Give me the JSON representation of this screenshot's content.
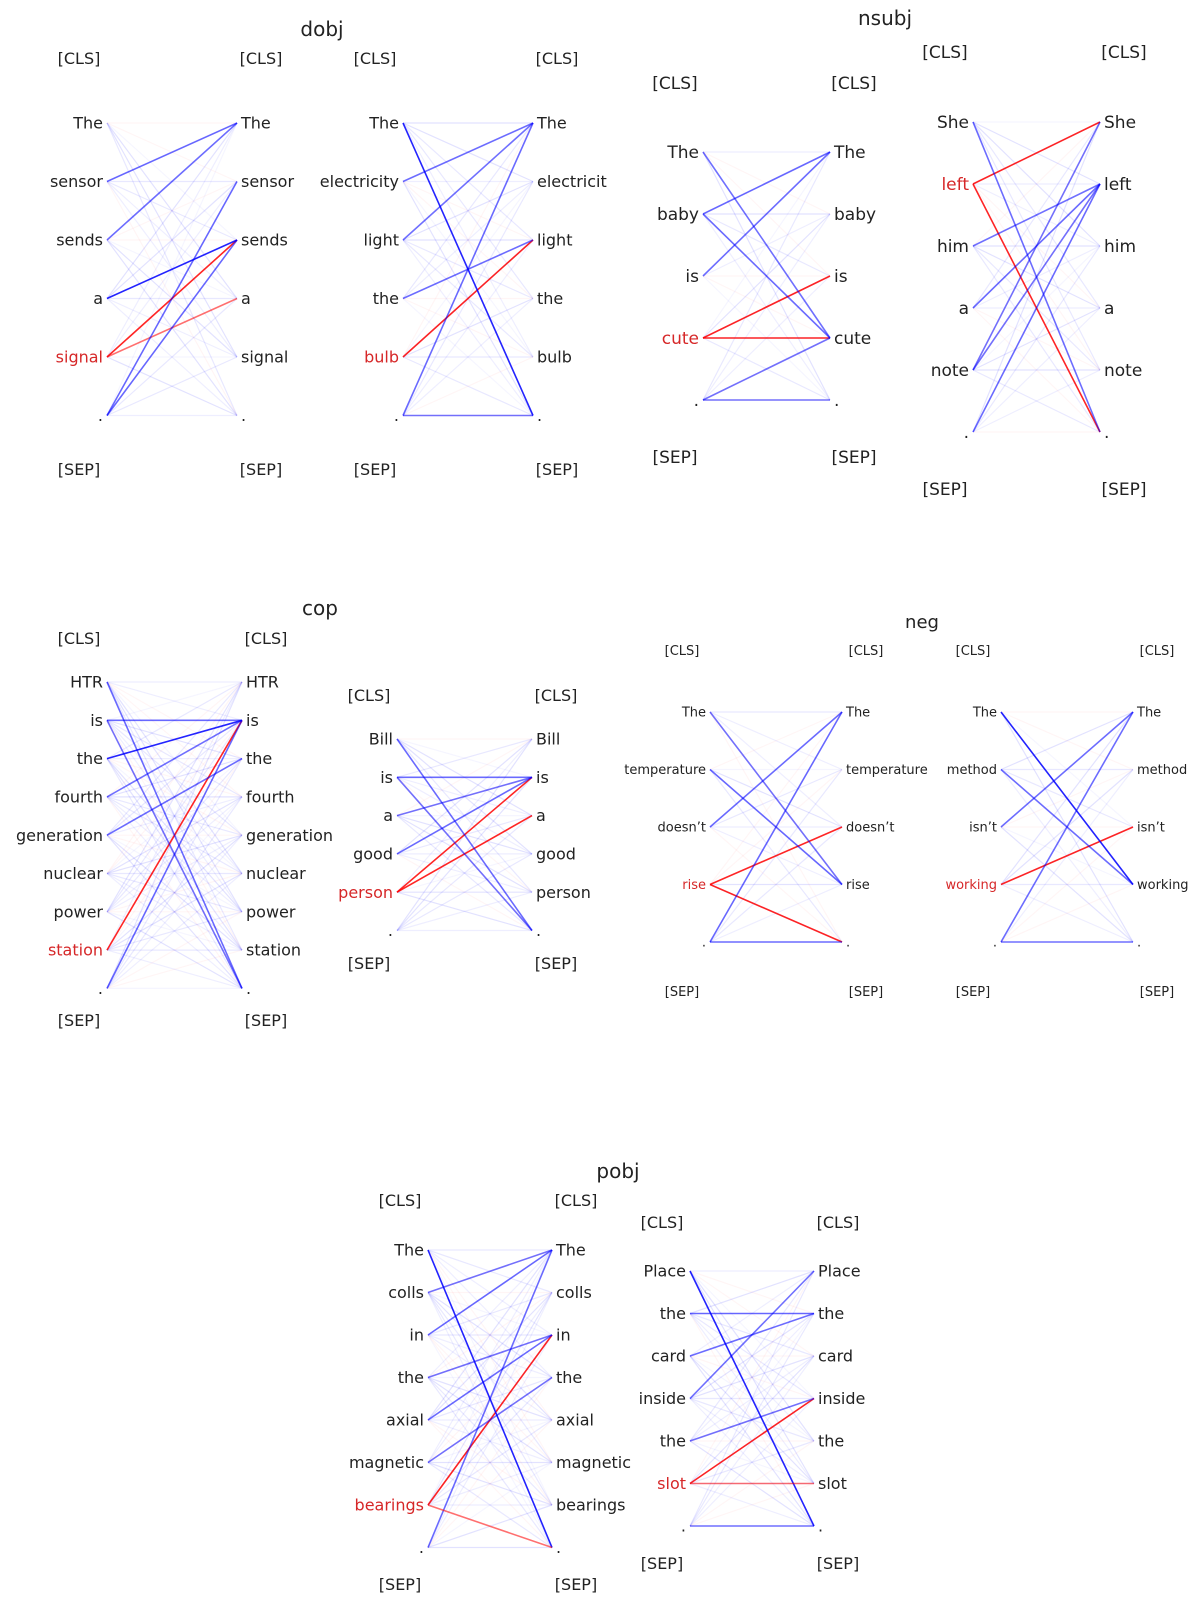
{
  "colors": {
    "attention": "#0000ff",
    "negative": "#ff0000",
    "highlight": "#d62728",
    "text": "#222222"
  },
  "special_tokens": {
    "cls": "[CLS]",
    "sep": "[SEP]"
  },
  "groups": [
    {
      "title": "dobj",
      "panels": [
        {
          "tokens": [
            "The",
            "sensor",
            "sends",
            "a",
            "signal",
            "."
          ],
          "highlight": 4,
          "strong_edges": [
            [
              4,
              2,
              "negative"
            ],
            [
              3,
              2,
              "attention"
            ],
            [
              1,
              0,
              "attention"
            ],
            [
              2,
              0,
              "attention"
            ],
            [
              4,
              3,
              "negative"
            ],
            [
              5,
              1,
              "attention"
            ],
            [
              5,
              2,
              "attention"
            ]
          ]
        },
        {
          "tokens": [
            "The",
            "electricity",
            "light",
            "the",
            "bulb",
            "."
          ],
          "right_tokens": [
            "The",
            "electricit",
            "light",
            "the",
            "bulb",
            "."
          ],
          "highlight": 4,
          "strong_edges": [
            [
              4,
              2,
              "negative"
            ],
            [
              0,
              5,
              "attention"
            ],
            [
              2,
              0,
              "attention"
            ],
            [
              3,
              2,
              "attention"
            ],
            [
              1,
              0,
              "attention"
            ],
            [
              5,
              5,
              "attention"
            ],
            [
              5,
              0,
              "attention"
            ]
          ]
        }
      ]
    },
    {
      "title": "nsubj",
      "panels": [
        {
          "tokens": [
            "The",
            "baby",
            "is",
            "cute",
            "."
          ],
          "highlight": 3,
          "strong_edges": [
            [
              3,
              3,
              "negative"
            ],
            [
              3,
              2,
              "negative"
            ],
            [
              0,
              3,
              "attention"
            ],
            [
              1,
              3,
              "attention"
            ],
            [
              2,
              0,
              "attention"
            ],
            [
              4,
              3,
              "attention"
            ],
            [
              4,
              4,
              "attention"
            ],
            [
              1,
              0,
              "attention"
            ]
          ]
        },
        {
          "tokens": [
            "She",
            "left",
            "him",
            "a",
            "note",
            "."
          ],
          "highlight": 1,
          "strong_edges": [
            [
              1,
              0,
              "negative"
            ],
            [
              1,
              5,
              "negative"
            ],
            [
              0,
              5,
              "attention"
            ],
            [
              2,
              1,
              "attention"
            ],
            [
              3,
              1,
              "attention"
            ],
            [
              4,
              1,
              "attention"
            ],
            [
              4,
              0,
              "attention"
            ],
            [
              5,
              1,
              "attention"
            ]
          ]
        }
      ]
    },
    {
      "title": "cop",
      "panels": [
        {
          "tokens": [
            "HTR",
            "is",
            "the",
            "fourth",
            "generation",
            "nuclear",
            "power",
            "station",
            "."
          ],
          "highlight": 7,
          "strong_edges": [
            [
              7,
              1,
              "negative"
            ],
            [
              2,
              1,
              "attention"
            ],
            [
              1,
              1,
              "attention"
            ],
            [
              3,
              1,
              "attention"
            ],
            [
              0,
              8,
              "attention"
            ],
            [
              1,
              8,
              "attention"
            ],
            [
              4,
              2,
              "attention"
            ],
            [
              8,
              1,
              "attention"
            ]
          ]
        },
        {
          "tokens": [
            "Bill",
            "is",
            "a",
            "good",
            "person",
            "."
          ],
          "highlight": 4,
          "strong_edges": [
            [
              4,
              1,
              "negative"
            ],
            [
              4,
              2,
              "negative"
            ],
            [
              2,
              1,
              "attention"
            ],
            [
              3,
              1,
              "attention"
            ],
            [
              1,
              1,
              "attention"
            ],
            [
              0,
              5,
              "attention"
            ],
            [
              1,
              5,
              "attention"
            ]
          ]
        }
      ]
    },
    {
      "title": "neg",
      "panels": [
        {
          "tokens": [
            "The",
            "temperature",
            "doesn’t",
            "rise",
            "."
          ],
          "highlight": 3,
          "strong_edges": [
            [
              3,
              2,
              "negative"
            ],
            [
              3,
              4,
              "negative"
            ],
            [
              0,
              3,
              "attention"
            ],
            [
              1,
              3,
              "attention"
            ],
            [
              4,
              0,
              "attention"
            ],
            [
              2,
              0,
              "attention"
            ],
            [
              4,
              4,
              "attention"
            ]
          ]
        },
        {
          "tokens": [
            "The",
            "method",
            "isn’t",
            "working",
            "."
          ],
          "highlight": 3,
          "strong_edges": [
            [
              3,
              2,
              "negative"
            ],
            [
              0,
              3,
              "attention"
            ],
            [
              1,
              3,
              "attention"
            ],
            [
              2,
              0,
              "attention"
            ],
            [
              4,
              0,
              "attention"
            ],
            [
              4,
              4,
              "attention"
            ]
          ]
        }
      ]
    },
    {
      "title": "pobj",
      "panels": [
        {
          "tokens": [
            "The",
            "colls",
            "in",
            "the",
            "axial",
            "magnetic",
            "bearings",
            "."
          ],
          "highlight": 6,
          "strong_edges": [
            [
              6,
              2,
              "negative"
            ],
            [
              0,
              7,
              "attention"
            ],
            [
              3,
              2,
              "attention"
            ],
            [
              1,
              0,
              "attention"
            ],
            [
              2,
              0,
              "attention"
            ],
            [
              4,
              2,
              "attention"
            ],
            [
              5,
              3,
              "attention"
            ],
            [
              7,
              0,
              "attention"
            ],
            [
              6,
              7,
              "negative"
            ]
          ]
        },
        {
          "tokens": [
            "Place",
            "the",
            "card",
            "inside",
            "the",
            "slot",
            "."
          ],
          "highlight": 5,
          "strong_edges": [
            [
              5,
              3,
              "negative"
            ],
            [
              0,
              6,
              "attention"
            ],
            [
              1,
              1,
              "attention"
            ],
            [
              2,
              1,
              "attention"
            ],
            [
              4,
              3,
              "attention"
            ],
            [
              3,
              0,
              "attention"
            ],
            [
              6,
              6,
              "attention"
            ],
            [
              5,
              5,
              "negative"
            ]
          ]
        }
      ]
    }
  ]
}
